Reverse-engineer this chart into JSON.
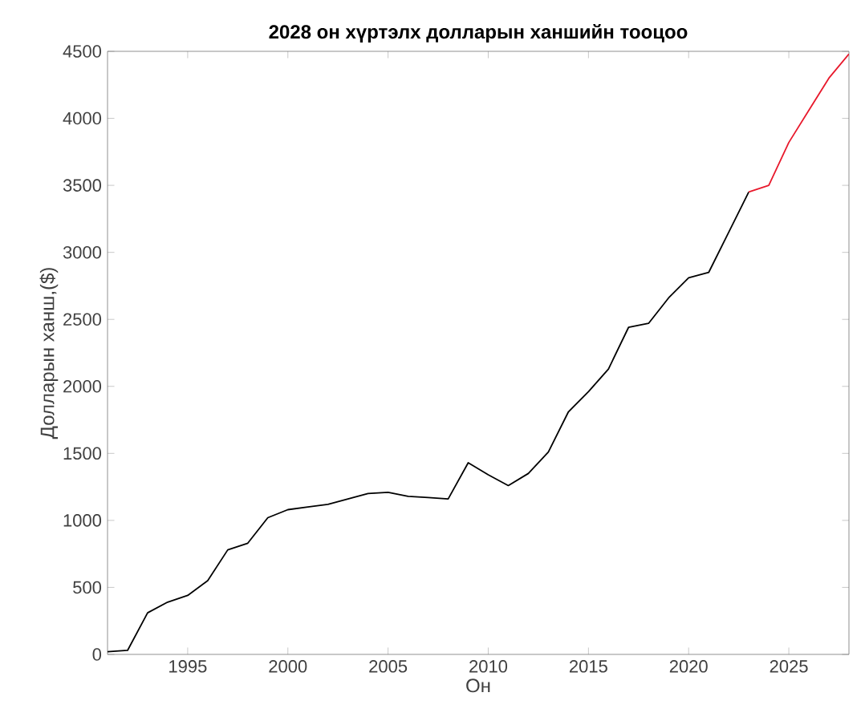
{
  "chart_data": {
    "type": "line",
    "title": "2028 он хүртэлх долларын ханшийн тооцоо",
    "xlabel": "Он",
    "ylabel": "Долларын ханш,($)",
    "xlim": [
      1991,
      2028
    ],
    "ylim": [
      0,
      4500
    ],
    "xticks": [
      1995,
      2000,
      2005,
      2010,
      2015,
      2020,
      2025
    ],
    "yticks": [
      0,
      500,
      1000,
      1500,
      2000,
      2500,
      3000,
      3500,
      4000,
      4500
    ],
    "grid": false,
    "marker": "none",
    "line_style": "solid",
    "series": [
      {
        "color": "#000000",
        "x": [
          1991,
          1992,
          1993,
          1994,
          1995,
          1996,
          1997,
          1998,
          1999,
          2000,
          2001,
          2002,
          2003,
          2004,
          2005,
          2006,
          2007,
          2008,
          2009,
          2010,
          2011,
          2012,
          2013,
          2014,
          2015,
          2016,
          2017,
          2018,
          2019,
          2020,
          2021,
          2022,
          2023
        ],
        "values": [
          20,
          30,
          310,
          390,
          440,
          550,
          780,
          830,
          1020,
          1080,
          1100,
          1120,
          1160,
          1200,
          1210,
          1180,
          1170,
          1160,
          1430,
          1340,
          1260,
          1350,
          1510,
          1810,
          1960,
          2130,
          2440,
          2470,
          2660,
          2810,
          2850,
          3150,
          3450
        ]
      },
      {
        "color": "#e8192c",
        "x": [
          2023,
          2024,
          2025,
          2026,
          2027,
          2028
        ],
        "values": [
          3450,
          3500,
          3820,
          4060,
          4300,
          4480
        ]
      }
    ]
  }
}
